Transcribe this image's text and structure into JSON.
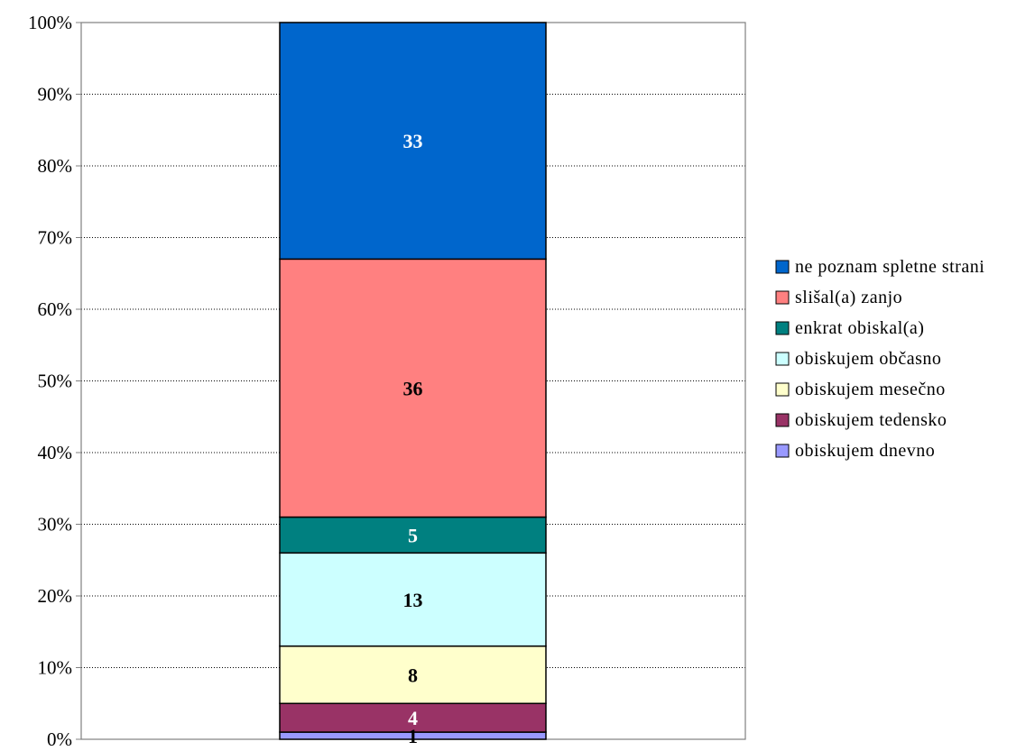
{
  "chart_data": {
    "type": "bar",
    "stacked": true,
    "percent_stacked": true,
    "categories": [
      ""
    ],
    "series": [
      {
        "name": "obiskujem dnevno",
        "values": [
          1
        ],
        "color": "#9999ff",
        "label_color": "#000000"
      },
      {
        "name": "obiskujem tedensko",
        "values": [
          4
        ],
        "color": "#993366",
        "label_color": "#ffffff"
      },
      {
        "name": "obiskujem mesečno",
        "values": [
          8
        ],
        "color": "#ffffcc",
        "label_color": "#000000"
      },
      {
        "name": "obiskujem občasno",
        "values": [
          13
        ],
        "color": "#ccffff",
        "label_color": "#000000"
      },
      {
        "name": "enkrat obiskal(a)",
        "values": [
          5
        ],
        "color": "#008080",
        "label_color": "#ffffff"
      },
      {
        "name": "slišal(a) zanjo",
        "values": [
          36
        ],
        "color": "#ff8080",
        "label_color": "#000000"
      },
      {
        "name": "ne poznam spletne strani",
        "values": [
          33
        ],
        "color": "#0066cc",
        "label_color": "#ffffff"
      }
    ],
    "legend_order": [
      "ne poznam spletne strani",
      "slišal(a) zanjo",
      "enkrat obiskal(a)",
      "obiskujem občasno",
      "obiskujem mesečno",
      "obiskujem tedensko",
      "obiskujem dnevno"
    ],
    "y_ticks": [
      "0%",
      "10%",
      "20%",
      "30%",
      "40%",
      "50%",
      "60%",
      "70%",
      "80%",
      "90%",
      "100%"
    ],
    "ylim": [
      0,
      100
    ],
    "grid": true,
    "legend_position": "right",
    "title": "",
    "xlabel": "",
    "ylabel": ""
  }
}
